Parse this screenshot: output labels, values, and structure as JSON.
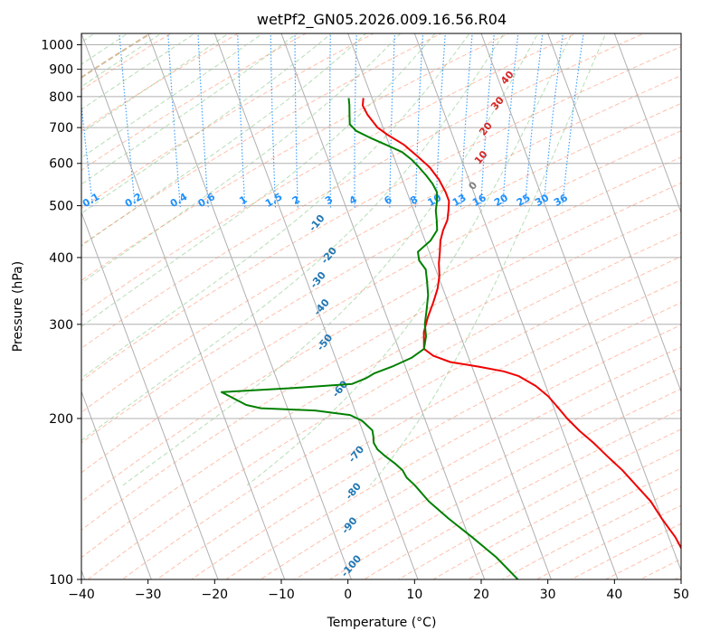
{
  "chart_data": {
    "type": "line",
    "subtype": "skew-t log-p diagram",
    "title": "wetPf2_GN05.2026.009.16.56.R04",
    "xlabel": "Temperature (°C)",
    "ylabel": "Pressure (hPa)",
    "xlim": [
      -40,
      50
    ],
    "ylim": [
      1050,
      100
    ],
    "y_scale": "log",
    "grid": true,
    "x_ticks": [
      -40,
      -30,
      -20,
      -10,
      0,
      10,
      20,
      30,
      40,
      50
    ],
    "x_tick_labels": [
      "−40",
      "−30",
      "−20",
      "−10",
      "0",
      "10",
      "20",
      "30",
      "40",
      "50"
    ],
    "y_ticks": [
      100,
      200,
      300,
      400,
      500,
      600,
      700,
      800,
      900,
      1000
    ],
    "y_tick_labels": [
      "100",
      "200",
      "300",
      "400",
      "500",
      "600",
      "700",
      "800",
      "900",
      "1000"
    ],
    "dry_adiabat_labels": [
      "-100",
      "-90",
      "-80",
      "-70",
      "-60",
      "-50",
      "-40",
      "-30",
      "-20",
      "-10"
    ],
    "dry_adiabat_label_color": "#1f77b4",
    "mixing_ratio_labels": [
      "0.1",
      "0.2",
      "0.4",
      "0.6",
      "1",
      "1.5",
      "2",
      "3",
      "4",
      "6",
      "8",
      "10",
      "13",
      "16",
      "20",
      "25",
      "30",
      "36"
    ],
    "mixing_ratio_label_color": "#1e90ff",
    "moist_adiabat_labels": [
      "0",
      "10",
      "20",
      "30",
      "40"
    ],
    "moist_adiabat_label_colors": [
      "#808080",
      "#d62728",
      "#d62728",
      "#d62728",
      "#d62728"
    ],
    "series": [
      {
        "color": "#ee0000",
        "points": [
          {
            "p": 795,
            "t": -1.3
          },
          {
            "p": 770,
            "t": -1.8
          },
          {
            "p": 740,
            "t": -1.6
          },
          {
            "p": 700,
            "t": -0.8
          },
          {
            "p": 680,
            "t": 0.2
          },
          {
            "p": 650,
            "t": 2.2
          },
          {
            "p": 620,
            "t": 3.5
          },
          {
            "p": 590,
            "t": 4.8
          },
          {
            "p": 560,
            "t": 5.5
          },
          {
            "p": 530,
            "t": 5.8
          },
          {
            "p": 510,
            "t": 5.8
          },
          {
            "p": 490,
            "t": 5.2
          },
          {
            "p": 470,
            "t": 4.5
          },
          {
            "p": 450,
            "t": 3.3
          },
          {
            "p": 430,
            "t": 2.3
          },
          {
            "p": 410,
            "t": 1.6
          },
          {
            "p": 390,
            "t": 0.8
          },
          {
            "p": 370,
            "t": 0.2
          },
          {
            "p": 350,
            "t": -0.8
          },
          {
            "p": 330,
            "t": -2.2
          },
          {
            "p": 310,
            "t": -3.8
          },
          {
            "p": 290,
            "t": -5.3
          },
          {
            "p": 270,
            "t": -6.2
          },
          {
            "p": 262,
            "t": -5.2
          },
          {
            "p": 255,
            "t": -3.0
          },
          {
            "p": 250,
            "t": 1.0
          },
          {
            "p": 245,
            "t": 4.5
          },
          {
            "p": 240,
            "t": 6.5
          },
          {
            "p": 230,
            "t": 8.5
          },
          {
            "p": 220,
            "t": 9.8
          },
          {
            "p": 210,
            "t": 10.6
          },
          {
            "p": 200,
            "t": 11.4
          },
          {
            "p": 190,
            "t": 12.5
          },
          {
            "p": 180,
            "t": 14.0
          },
          {
            "p": 170,
            "t": 15.3
          },
          {
            "p": 160,
            "t": 16.8
          },
          {
            "p": 150,
            "t": 18.0
          },
          {
            "p": 140,
            "t": 19.3
          },
          {
            "p": 130,
            "t": 20.0
          },
          {
            "p": 120,
            "t": 21.0
          },
          {
            "p": 110,
            "t": 21.5
          },
          {
            "p": 100,
            "t": 22.3
          }
        ]
      },
      {
        "color": "#008000",
        "points": [
          {
            "p": 795,
            "t": -3.5
          },
          {
            "p": 770,
            "t": -3.8
          },
          {
            "p": 740,
            "t": -4.3
          },
          {
            "p": 710,
            "t": -4.8
          },
          {
            "p": 690,
            "t": -4.2
          },
          {
            "p": 670,
            "t": -2.5
          },
          {
            "p": 650,
            "t": -0.5
          },
          {
            "p": 630,
            "t": 1.5
          },
          {
            "p": 610,
            "t": 2.5
          },
          {
            "p": 590,
            "t": 3.2
          },
          {
            "p": 570,
            "t": 3.8
          },
          {
            "p": 550,
            "t": 4.3
          },
          {
            "p": 530,
            "t": 4.5
          },
          {
            "p": 510,
            "t": 4.0
          },
          {
            "p": 490,
            "t": 3.3
          },
          {
            "p": 470,
            "t": 2.9
          },
          {
            "p": 450,
            "t": 2.4
          },
          {
            "p": 430,
            "t": 0.8
          },
          {
            "p": 410,
            "t": -1.7
          },
          {
            "p": 395,
            "t": -2.0
          },
          {
            "p": 380,
            "t": -1.5
          },
          {
            "p": 360,
            "t": -2.0
          },
          {
            "p": 340,
            "t": -2.6
          },
          {
            "p": 320,
            "t": -3.6
          },
          {
            "p": 300,
            "t": -4.7
          },
          {
            "p": 285,
            "t": -5.2
          },
          {
            "p": 270,
            "t": -6.2
          },
          {
            "p": 260,
            "t": -8.5
          },
          {
            "p": 250,
            "t": -12.0
          },
          {
            "p": 243,
            "t": -15.0
          },
          {
            "p": 238,
            "t": -16.5
          },
          {
            "p": 232,
            "t": -19.0
          },
          {
            "p": 228,
            "t": -28.0
          },
          {
            "p": 224,
            "t": -39.0
          },
          {
            "p": 220,
            "t": -38.0
          },
          {
            "p": 212,
            "t": -36.0
          },
          {
            "p": 209,
            "t": -34.0
          },
          {
            "p": 207,
            "t": -26.0
          },
          {
            "p": 203,
            "t": -21.0
          },
          {
            "p": 198,
            "t": -19.5
          },
          {
            "p": 190,
            "t": -18.5
          },
          {
            "p": 185,
            "t": -18.7
          },
          {
            "p": 180,
            "t": -19.0
          },
          {
            "p": 175,
            "t": -18.8
          },
          {
            "p": 170,
            "t": -18.0
          },
          {
            "p": 165,
            "t": -17.0
          },
          {
            "p": 160,
            "t": -16.2
          },
          {
            "p": 155,
            "t": -16.0
          },
          {
            "p": 150,
            "t": -15.2
          },
          {
            "p": 140,
            "t": -14.0
          },
          {
            "p": 130,
            "t": -12.0
          },
          {
            "p": 120,
            "t": -9.5
          },
          {
            "p": 110,
            "t": -7.0
          },
          {
            "p": 100,
            "t": -5.0
          }
        ]
      }
    ]
  }
}
